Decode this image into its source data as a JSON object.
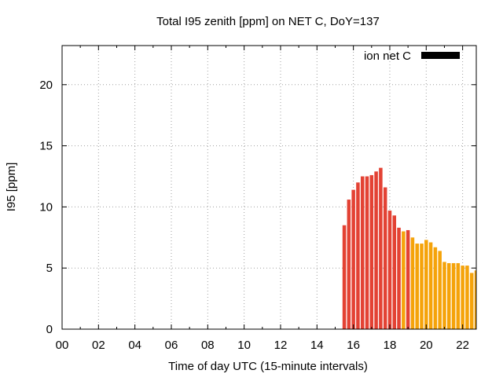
{
  "chart_data": {
    "type": "bar",
    "title": "Total I95 zenith [ppm] on NET C, DoY=137",
    "xlabel": "Time of day UTC (15-minute intervals)",
    "ylabel": "I95 [ppm]",
    "xlim": [
      0,
      22.75
    ],
    "ylim": [
      0,
      23.2
    ],
    "xticks": [
      "00",
      "02",
      "04",
      "06",
      "08",
      "10",
      "12",
      "14",
      "16",
      "18",
      "20",
      "22"
    ],
    "yticks": [
      0,
      5,
      10,
      15,
      20
    ],
    "grid": true,
    "legend": {
      "position": "top-right",
      "label": "ion net C",
      "color": "#000000"
    },
    "colors": {
      "high": "#e34234",
      "low": "#f5a30a"
    },
    "x": [
      15.5,
      15.75,
      16.0,
      16.25,
      16.5,
      16.75,
      17.0,
      17.25,
      17.5,
      17.75,
      18.0,
      18.25,
      18.5,
      18.75,
      19.0,
      19.25,
      19.5,
      19.75,
      20.0,
      20.25,
      20.5,
      20.75,
      21.0,
      21.25,
      21.5,
      21.75,
      22.0,
      22.25,
      22.5,
      22.75
    ],
    "values": [
      8.5,
      10.6,
      11.4,
      12.0,
      12.5,
      12.5,
      12.6,
      12.9,
      13.2,
      11.6,
      9.7,
      9.3,
      8.3,
      8.0,
      8.1,
      7.5,
      7.0,
      7.0,
      7.3,
      7.1,
      6.7,
      6.4,
      5.5,
      5.4,
      5.4,
      5.4,
      5.2,
      5.2,
      4.6,
      4.8
    ],
    "series_color": [
      "high",
      "high",
      "high",
      "high",
      "high",
      "high",
      "high",
      "high",
      "high",
      "high",
      "high",
      "high",
      "high",
      "low",
      "high",
      "low",
      "low",
      "low",
      "low",
      "low",
      "low",
      "low",
      "low",
      "low",
      "low",
      "low",
      "low",
      "low",
      "low",
      "low"
    ]
  }
}
